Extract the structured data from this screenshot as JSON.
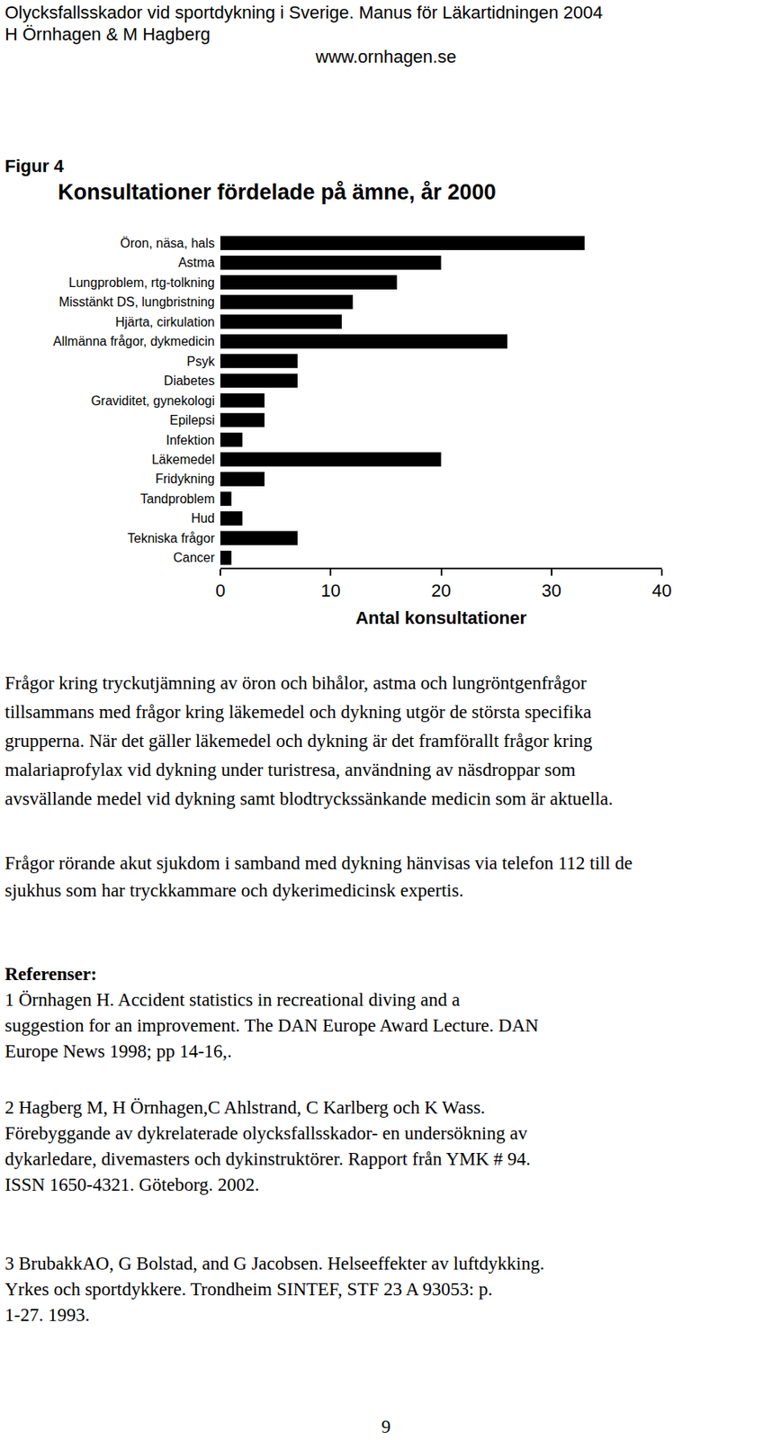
{
  "header": {
    "lines": [
      "Olycksfallsskador vid sportdykning i Sverige. Manus för Läkartidningen 2004",
      "H Örnhagen & M Hagberg"
    ],
    "url": "www.ornhagen.se"
  },
  "figure_label": "Figur 4",
  "chart_data": {
    "type": "bar",
    "orientation": "horizontal",
    "title": "Konsultationer fördelade på ämne, år 2000",
    "x_label": "Antal konsultationer",
    "categories": [
      "Öron, näsa, hals",
      "Astma",
      "Lungproblem, rtg-tolkning",
      "Misstänkt DS, lungbristning",
      "Hjärta, cirkulation",
      "Allmänna frågor, dykmedicin",
      "Psyk",
      "Diabetes",
      "Graviditet, gynekologi",
      "Epilepsi",
      "Infektion",
      "Läkemedel",
      "Fridykning",
      "Tandproblem",
      "Hud",
      "Tekniska frågor",
      "Cancer"
    ],
    "values": [
      33,
      20,
      16,
      12,
      11,
      26,
      7,
      7,
      4,
      4,
      2,
      20,
      4,
      1,
      2,
      7,
      1
    ],
    "color": "#000000",
    "xlim": [
      0,
      40
    ],
    "xticks": [
      0,
      10,
      20,
      30,
      40
    ],
    "grid": false
  },
  "paragraphs": [
    [
      "Frågor kring tryckutjämning av öron och bihålor, astma och lungröntgenfrågor",
      "tillsammans med frågor kring läkemedel och dykning utgör de största specifika",
      "grupperna. När det gäller läkemedel och dykning är det framförallt frågor kring",
      "malariaprofylax vid dykning under turistresa, användning av näsdroppar som",
      "avsvällande medel vid dykning samt blodtryckssänkande medicin som är aktuella."
    ],
    [
      "Frågor rörande akut sjukdom i samband med dykning hänvisas via telefon 112 till de",
      "sjukhus som har tryckkammare och dykerimedicinsk expertis."
    ]
  ],
  "references": {
    "title": "Referenser:",
    "items": [
      [
        "1  Örnhagen H. Accident statistics in recreational diving and a",
        "suggestion for an improvement. The DAN Europe Award Lecture.  DAN",
        "Europe News 1998; pp 14-16,."
      ],
      [
        "2 Hagberg M, H Örnhagen,C Ahlstrand, C Karlberg och K Wass.",
        "Förebyggande av dykrelaterade olycksfallsskador- en undersökning av",
        "dykarledare, divemasters och dykinstruktörer. Rapport från YMK # 94.",
        "ISSN 1650-4321. Göteborg. 2002."
      ],
      [
        "3 BrubakkAO, G Bolstad, and G Jacobsen. Helseeffekter av luftdykking.",
        "Yrkes och sportdykkere. Trondheim SINTEF, STF 23 A 93053: p.",
        "1-27. 1993."
      ]
    ]
  },
  "page_number": "9"
}
